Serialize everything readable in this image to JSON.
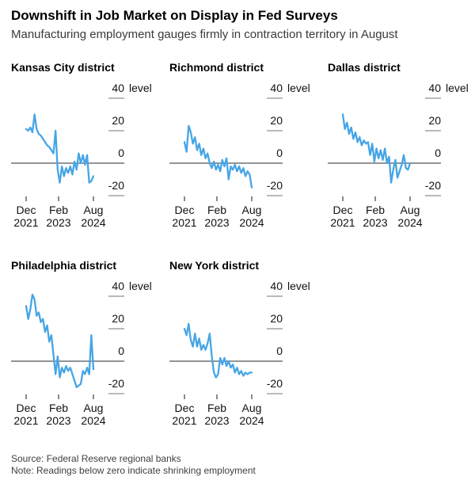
{
  "header": {
    "title": "Downshift in Job Market on Display in Fed Surveys",
    "subtitle": "Manufacturing employment gauges firmly in contraction territory in August"
  },
  "axis": {
    "y_unit_label": "level",
    "y_ticks": [
      "40",
      "20",
      "0",
      "-20"
    ],
    "x_ticks": [
      {
        "month": "Dec",
        "year": "2021"
      },
      {
        "month": "Feb",
        "year": "2023"
      },
      {
        "month": "Aug",
        "year": "2024"
      }
    ]
  },
  "chart_data": [
    {
      "type": "line",
      "title": "Kansas City district",
      "x_start": "Dec 2021",
      "x_end": "Aug 2024",
      "x_frequency": "monthly",
      "x_tick_labels": [
        "Dec 2021",
        "Feb 2023",
        "Aug 2024"
      ],
      "ylabel": "level",
      "ylim": [
        -25,
        45
      ],
      "y_gridlines": [
        40,
        20,
        0,
        -20
      ],
      "values": [
        21,
        20,
        22,
        19,
        30,
        21,
        18,
        17,
        15,
        13,
        11,
        10,
        8,
        6,
        20,
        -4,
        -12,
        -2,
        -8,
        -3,
        -6,
        -2,
        -7,
        1,
        -4,
        6,
        0,
        5,
        -1,
        5,
        -12,
        -11,
        -8
      ]
    },
    {
      "type": "line",
      "title": "Richmond district",
      "x_start": "Dec 2021",
      "x_end": "Aug 2024",
      "x_frequency": "monthly",
      "x_tick_labels": [
        "Dec 2021",
        "Feb 2023",
        "Aug 2024"
      ],
      "ylabel": "level",
      "ylim": [
        -25,
        45
      ],
      "y_gridlines": [
        40,
        20,
        0,
        -20
      ],
      "values": [
        13,
        7,
        23,
        19,
        12,
        16,
        8,
        12,
        5,
        9,
        3,
        6,
        0,
        -3,
        1,
        -4,
        -1,
        -5,
        2,
        -2,
        3,
        -10,
        -2,
        -4,
        -1,
        -5,
        -2,
        -6,
        -3,
        -8,
        -5,
        -7,
        -15
      ]
    },
    {
      "type": "line",
      "title": "Dallas district",
      "x_start": "Dec 2021",
      "x_end": "Aug 2024",
      "x_frequency": "monthly",
      "x_tick_labels": [
        "Dec 2021",
        "Feb 2023",
        "Aug 2024"
      ],
      "ylabel": "level",
      "ylim": [
        -25,
        45
      ],
      "y_gridlines": [
        40,
        20,
        0,
        -20
      ],
      "values": [
        30,
        21,
        25,
        18,
        22,
        15,
        19,
        13,
        16,
        11,
        14,
        12,
        13,
        5,
        12,
        1,
        9,
        3,
        8,
        2,
        9,
        0,
        4,
        -12,
        -4,
        2,
        -9,
        -5,
        -1,
        5,
        -3,
        -4,
        0
      ]
    },
    {
      "type": "line",
      "title": "Philadelphia district",
      "x_start": "Dec 2021",
      "x_end": "Aug 2024",
      "x_frequency": "monthly",
      "x_tick_labels": [
        "Dec 2021",
        "Feb 2023",
        "Aug 2024"
      ],
      "ylabel": "level",
      "ylim": [
        -25,
        45
      ],
      "y_gridlines": [
        40,
        20,
        0,
        -20
      ],
      "values": [
        34,
        26,
        32,
        41,
        38,
        28,
        30,
        24,
        26,
        18,
        22,
        12,
        16,
        4,
        -8,
        3,
        -10,
        -4,
        -7,
        -3,
        -6,
        -4,
        -8,
        -12,
        -16,
        -15,
        -14,
        -6,
        -8,
        -4,
        -8,
        16,
        -5
      ]
    },
    {
      "type": "line",
      "title": "New York district",
      "x_start": "Dec 2021",
      "x_end": "Aug 2024",
      "x_frequency": "monthly",
      "x_tick_labels": [
        "Dec 2021",
        "Feb 2023",
        "Aug 2024"
      ],
      "ylabel": "level",
      "ylim": [
        -25,
        45
      ],
      "y_gridlines": [
        40,
        20,
        0,
        -20
      ],
      "values": [
        20,
        16,
        23,
        13,
        9,
        17,
        9,
        14,
        7,
        10,
        7,
        11,
        17,
        3,
        -7,
        -10,
        -8,
        2,
        -2,
        2,
        -3,
        0,
        -4,
        -2,
        -7,
        -4,
        -8,
        -6,
        -9,
        -7,
        -8,
        -7,
        -7
      ]
    }
  ],
  "footer": {
    "source": "Source: Federal Reserve regional banks",
    "note": "Note: Readings below zero indicate shrinking employment"
  },
  "colors": {
    "line": "#46a5e6",
    "zero_line": "#6f7276",
    "grid_tick": "#8f9194",
    "text": "#000000"
  }
}
